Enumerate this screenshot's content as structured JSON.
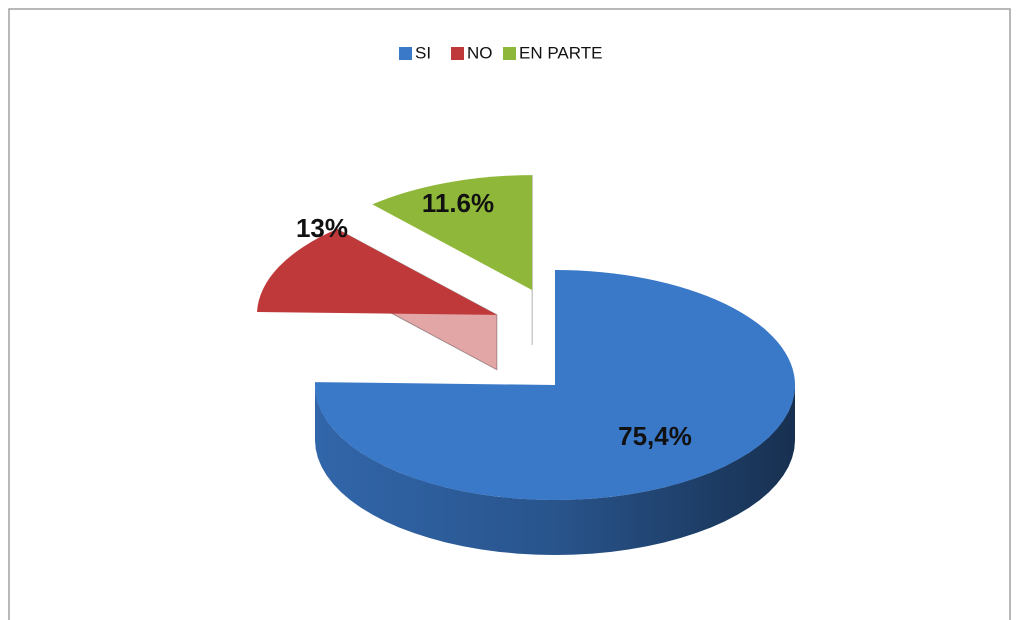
{
  "chart_data": {
    "type": "pie",
    "categories": [
      "SI",
      "NO",
      "EN PARTE"
    ],
    "values": [
      75.4,
      13,
      11.6
    ],
    "value_labels": [
      "75,4%",
      "13%",
      "11.6%"
    ],
    "colors": [
      "#3a78c8",
      "#c0393a",
      "#8fb83b"
    ],
    "legend": "top"
  }
}
